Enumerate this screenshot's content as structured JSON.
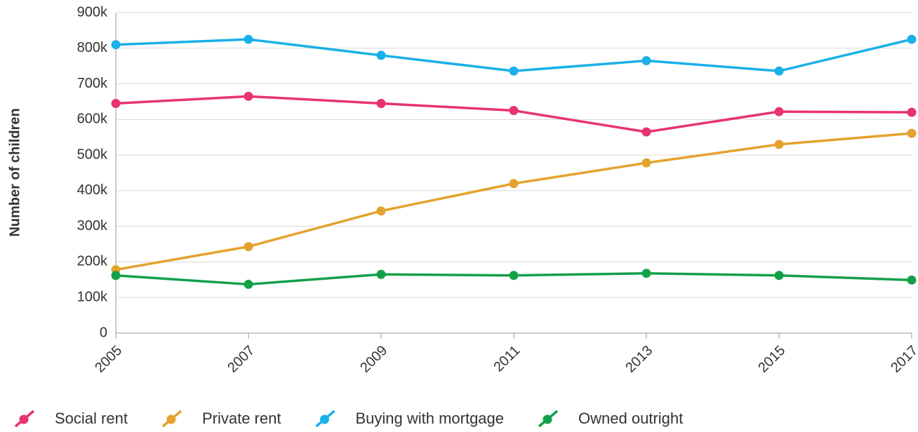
{
  "chart_data": {
    "type": "line",
    "y_label": "Number of children",
    "x": [
      2005,
      2007,
      2009,
      2011,
      2013,
      2015,
      2017
    ],
    "xlim": [
      2005,
      2017
    ],
    "xticks": [
      2005,
      2007,
      2009,
      2011,
      2013,
      2015,
      2017
    ],
    "ylim": [
      0,
      900000
    ],
    "yticks": [
      0,
      {
        "value": 100000,
        "label": "100k"
      },
      {
        "value": 200000,
        "label": "200k"
      },
      {
        "value": 300000,
        "label": "300k"
      },
      {
        "value": 400000,
        "label": "400k"
      },
      {
        "value": 500000,
        "label": "500k"
      },
      {
        "value": 600000,
        "label": "600k"
      },
      {
        "value": 700000,
        "label": "700k"
      },
      {
        "value": 800000,
        "label": "800k"
      },
      {
        "value": 900000,
        "label": "900k"
      }
    ],
    "grid": true,
    "legend": "bottom",
    "series": [
      {
        "name": "Social rent",
        "color": "#e8336f",
        "values": [
          645000,
          665000,
          645000,
          625000,
          565000,
          622000,
          620000
        ]
      },
      {
        "name": "Private rent",
        "color": "#e4a22e",
        "values": [
          178000,
          243000,
          343000,
          420000,
          478000,
          530000,
          561000
        ]
      },
      {
        "name": "Buying with mortgage",
        "color": "#1ab0e8",
        "values": [
          810000,
          825000,
          780000,
          736000,
          765000,
          736000,
          825000
        ]
      },
      {
        "name": "Owned outright",
        "color": "#14a04a",
        "values": [
          162000,
          137000,
          165000,
          162000,
          168000,
          162000,
          149000
        ]
      }
    ]
  }
}
